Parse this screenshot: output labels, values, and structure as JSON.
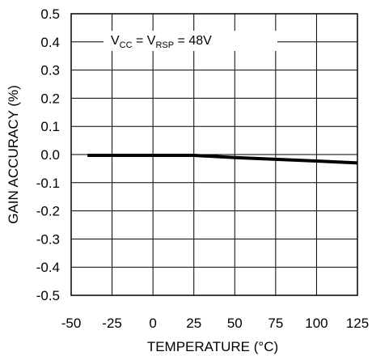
{
  "chart_data": {
    "type": "line",
    "title": "",
    "xlabel": "TEMPERATURE (°C)",
    "ylabel": "GAIN ACCURACY (%)",
    "xlim": [
      -50,
      125
    ],
    "ylim": [
      -0.5,
      0.5
    ],
    "x_ticks": [
      "-50",
      "-25",
      "0",
      "25",
      "50",
      "75",
      "100",
      "125"
    ],
    "y_ticks": [
      "0.5",
      "0.4",
      "0.3",
      "0.2",
      "0.1",
      "0.0",
      "-0.1",
      "-0.2",
      "-0.3",
      "-0.4",
      "-0.5"
    ],
    "grid": true,
    "annotation": {
      "v1": "V",
      "sub1": "CC",
      "eq1": " = V",
      "sub2": "RSP",
      "eq2": " = 48V"
    },
    "series": [
      {
        "x": [
          -40,
          -25,
          0,
          25,
          50,
          75,
          100,
          125
        ],
        "y": [
          -0.003,
          -0.003,
          -0.003,
          -0.003,
          -0.011,
          -0.017,
          -0.023,
          -0.03
        ]
      }
    ]
  }
}
